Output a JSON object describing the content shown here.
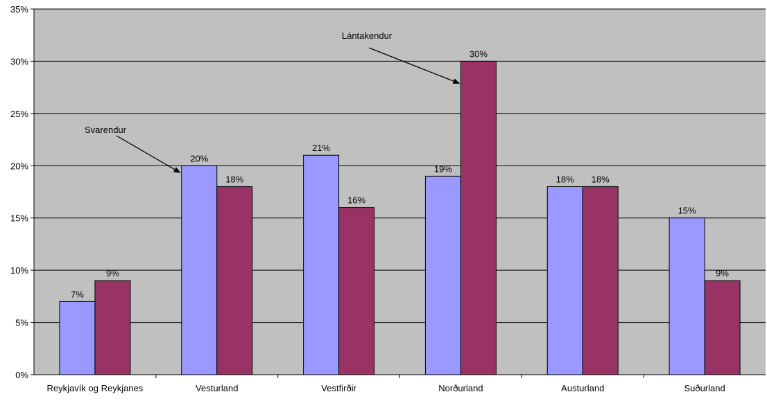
{
  "chart_data": {
    "type": "bar",
    "title": "",
    "xlabel": "",
    "ylabel": "",
    "categories": [
      "Reykjavík og Reykjanes",
      "Vesturland",
      "Vestfirðir",
      "Norðurland",
      "Austurland",
      "Suðurland"
    ],
    "series": [
      {
        "name": "Svarendur",
        "values": [
          7,
          20,
          21,
          19,
          18,
          15
        ],
        "color": "#9999FF"
      },
      {
        "name": "Lántakendur",
        "values": [
          9,
          18,
          16,
          30,
          18,
          9
        ],
        "color": "#993366"
      }
    ],
    "ylim": [
      0,
      35
    ],
    "yticks": [
      0,
      5,
      10,
      15,
      20,
      25,
      30,
      35
    ],
    "ytick_labels": [
      "0%",
      "5%",
      "10%",
      "15%",
      "20%",
      "25%",
      "30%",
      "35%"
    ],
    "value_suffix": "%",
    "grid": true,
    "plot_background": "#C0C0C0",
    "annotations": [
      {
        "text": "Svarendur",
        "points_to": {
          "category": "Vesturland",
          "series": "Svarendur",
          "value": 20
        }
      },
      {
        "text": "Lántakendur",
        "points_to": {
          "category": "Norðurland",
          "series": "Lántakendur",
          "value": 30
        }
      }
    ]
  }
}
